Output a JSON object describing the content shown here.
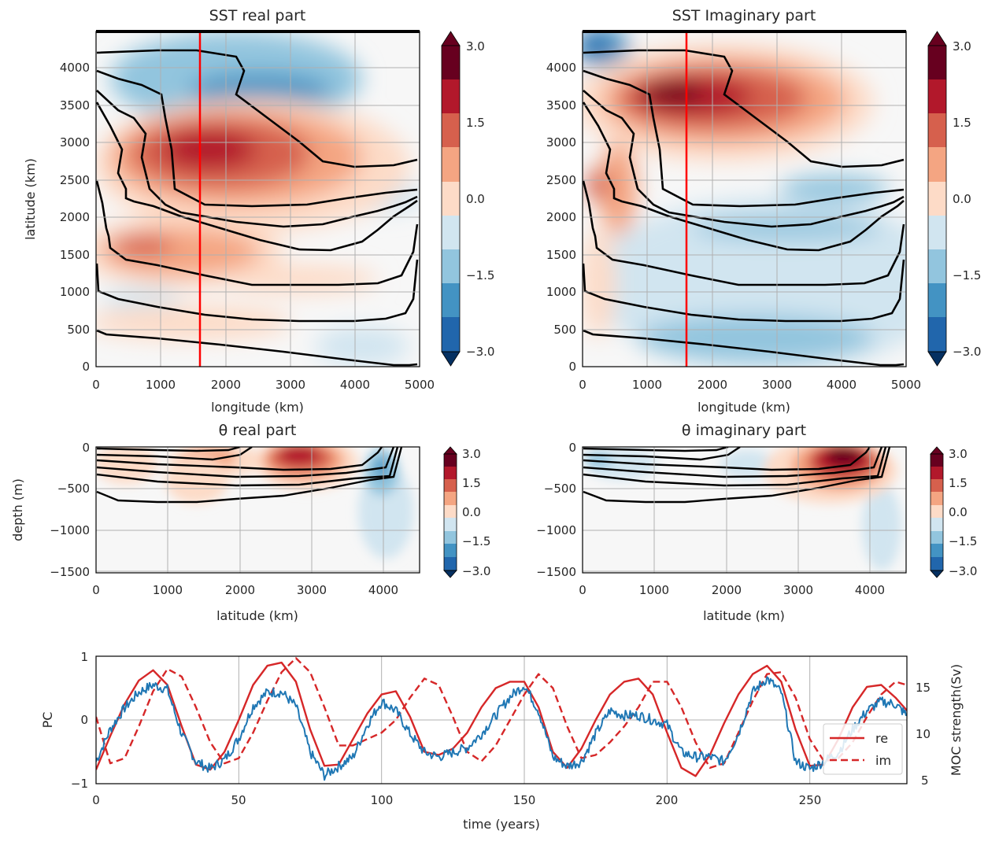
{
  "chart_data": [
    {
      "type": "heatmap",
      "title": "SST real part",
      "xlabel": "longitude (km)",
      "ylabel": "latitude (km)",
      "xlim": [
        0,
        5000
      ],
      "ylim": [
        0,
        4500
      ],
      "xticks": [
        "0",
        "1000",
        "2000",
        "3000",
        "4000",
        "5000"
      ],
      "yticks": [
        "0",
        "500",
        "1000",
        "1500",
        "2000",
        "2500",
        "3000",
        "3500",
        "4000"
      ],
      "colorbar_ticks": [
        "3.0",
        "1.5",
        "0.0",
        "−1.5",
        "−3.0"
      ],
      "colorbar_range": [
        -3.0,
        3.0
      ],
      "marker_line_x": 1600,
      "grid": true
    },
    {
      "type": "heatmap",
      "title": "SST Imaginary part",
      "xlabel": "longitude (km)",
      "ylabel": "",
      "xlim": [
        0,
        5000
      ],
      "ylim": [
        0,
        4500
      ],
      "xticks": [
        "0",
        "1000",
        "2000",
        "3000",
        "4000",
        "5000"
      ],
      "yticks": [
        "0",
        "500",
        "1000",
        "1500",
        "2000",
        "2500",
        "3000",
        "3500",
        "4000"
      ],
      "colorbar_ticks": [
        "3.0",
        "1.5",
        "0.0",
        "−1.5",
        "−3.0"
      ],
      "colorbar_range": [
        -3.0,
        3.0
      ],
      "marker_line_x": 1600,
      "grid": true
    },
    {
      "type": "heatmap",
      "title": "θ real part",
      "xlabel": "latitude (km)",
      "ylabel": "depth (m)",
      "xlim": [
        0,
        4500
      ],
      "ylim": [
        -1550,
        0
      ],
      "xticks": [
        "0",
        "1000",
        "2000",
        "3000",
        "4000"
      ],
      "yticks": [
        "0",
        "−500",
        "−1000",
        "−1500"
      ],
      "colorbar_ticks": [
        "3.0",
        "1.5",
        "0.0",
        "−1.5",
        "−3.0"
      ],
      "colorbar_range": [
        -3.0,
        3.0
      ],
      "grid": true
    },
    {
      "type": "heatmap",
      "title": "θ imaginary part",
      "xlabel": "latitude (km)",
      "ylabel": "",
      "xlim": [
        0,
        4500
      ],
      "ylim": [
        -1550,
        0
      ],
      "xticks": [
        "0",
        "1000",
        "2000",
        "3000",
        "4000"
      ],
      "yticks": [
        "0",
        "−500",
        "−1000",
        "−1500"
      ],
      "colorbar_ticks": [
        "3.0",
        "1.5",
        "0.0",
        "−1.5",
        "−3.0"
      ],
      "colorbar_range": [
        -3.0,
        3.0
      ],
      "grid": true
    },
    {
      "type": "line",
      "title": "",
      "xlabel": "time (years)",
      "ylabel": "PC",
      "ylabel_right": "MOC strength(Sv)",
      "xlim": [
        0,
        284
      ],
      "ylim": [
        -1,
        1
      ],
      "ylim_right": [
        4.6,
        18.4
      ],
      "xticks": [
        "0",
        "50",
        "100",
        "150",
        "200",
        "250"
      ],
      "yticks": [
        "−1",
        "0",
        "1"
      ],
      "yticks_right": [
        "5",
        "10",
        "15"
      ],
      "grid": true,
      "legend": "right",
      "series": [
        {
          "name": "re",
          "axis": "left",
          "style": "solid",
          "color": "#d62728",
          "x": [
            0,
            5,
            10,
            15,
            20,
            25,
            30,
            35,
            40,
            45,
            50,
            55,
            60,
            65,
            70,
            75,
            80,
            85,
            90,
            95,
            100,
            105,
            110,
            115,
            120,
            125,
            130,
            135,
            140,
            145,
            150,
            155,
            160,
            165,
            170,
            175,
            180,
            185,
            190,
            195,
            200,
            205,
            210,
            215,
            220,
            225,
            230,
            235,
            240,
            245,
            250,
            255,
            260,
            265,
            270,
            275,
            280,
            284
          ],
          "values": [
            -0.78,
            -0.25,
            0.25,
            0.62,
            0.78,
            0.55,
            -0.1,
            -0.7,
            -0.78,
            -0.5,
            0.0,
            0.55,
            0.85,
            0.9,
            0.6,
            -0.15,
            -0.72,
            -0.7,
            -0.3,
            0.1,
            0.4,
            0.45,
            0.05,
            -0.5,
            -0.55,
            -0.45,
            -0.2,
            0.2,
            0.5,
            0.6,
            0.6,
            0.2,
            -0.5,
            -0.75,
            -0.45,
            0.0,
            0.4,
            0.6,
            0.65,
            0.4,
            -0.2,
            -0.75,
            -0.88,
            -0.55,
            -0.05,
            0.4,
            0.72,
            0.85,
            0.6,
            -0.15,
            -0.72,
            -0.7,
            -0.3,
            0.2,
            0.52,
            0.55,
            0.35,
            0.15
          ]
        },
        {
          "name": "im",
          "axis": "left",
          "style": "dashed",
          "color": "#d62728",
          "x": [
            0,
            5,
            10,
            15,
            20,
            25,
            30,
            35,
            40,
            45,
            50,
            55,
            60,
            65,
            70,
            75,
            80,
            85,
            90,
            95,
            100,
            105,
            110,
            115,
            120,
            125,
            130,
            135,
            140,
            145,
            150,
            155,
            160,
            165,
            170,
            175,
            180,
            185,
            190,
            195,
            200,
            205,
            210,
            215,
            220,
            225,
            230,
            235,
            240,
            245,
            250,
            255,
            260,
            265,
            270,
            275,
            280,
            284
          ],
          "values": [
            0.05,
            -0.68,
            -0.6,
            -0.1,
            0.45,
            0.8,
            0.68,
            0.2,
            -0.35,
            -0.68,
            -0.6,
            -0.2,
            0.3,
            0.75,
            0.97,
            0.75,
            0.2,
            -0.4,
            -0.4,
            -0.3,
            -0.2,
            0.0,
            0.35,
            0.65,
            0.55,
            0.05,
            -0.5,
            -0.65,
            -0.4,
            0.0,
            0.4,
            0.72,
            0.5,
            -0.1,
            -0.6,
            -0.55,
            -0.35,
            -0.1,
            0.2,
            0.6,
            0.6,
            0.2,
            -0.35,
            -0.75,
            -0.68,
            -0.2,
            0.3,
            0.72,
            0.75,
            0.35,
            -0.3,
            -0.65,
            -0.6,
            -0.35,
            0.05,
            0.4,
            0.6,
            0.55
          ]
        },
        {
          "name": "MOC",
          "axis": "right",
          "style": "solid",
          "color": "#1f77b4",
          "x": [
            0,
            5,
            10,
            15,
            20,
            25,
            30,
            35,
            40,
            45,
            50,
            55,
            60,
            65,
            70,
            75,
            80,
            85,
            90,
            95,
            100,
            105,
            110,
            115,
            120,
            125,
            130,
            135,
            140,
            145,
            150,
            155,
            160,
            165,
            170,
            175,
            180,
            185,
            190,
            195,
            200,
            205,
            210,
            215,
            220,
            225,
            230,
            235,
            240,
            245,
            250,
            255,
            260,
            265,
            270,
            275,
            280,
            284
          ],
          "values": [
            7.0,
            10.5,
            12.8,
            14.5,
            15.3,
            14.8,
            10.0,
            7.0,
            6.2,
            7.2,
            9.5,
            13.0,
            14.5,
            14.5,
            13.0,
            8.0,
            5.5,
            6.5,
            7.5,
            11.0,
            13.5,
            12.5,
            10.0,
            8.0,
            7.5,
            8.0,
            8.5,
            10.0,
            12.0,
            14.0,
            15.3,
            12.5,
            7.5,
            6.5,
            7.0,
            10.0,
            12.5,
            12.0,
            12.0,
            11.5,
            11.0,
            8.0,
            7.5,
            7.5,
            7.0,
            10.0,
            14.5,
            16.0,
            14.5,
            7.0,
            6.2,
            7.0,
            8.0,
            10.5,
            12.5,
            13.5,
            13.2,
            12.0
          ]
        }
      ]
    }
  ]
}
